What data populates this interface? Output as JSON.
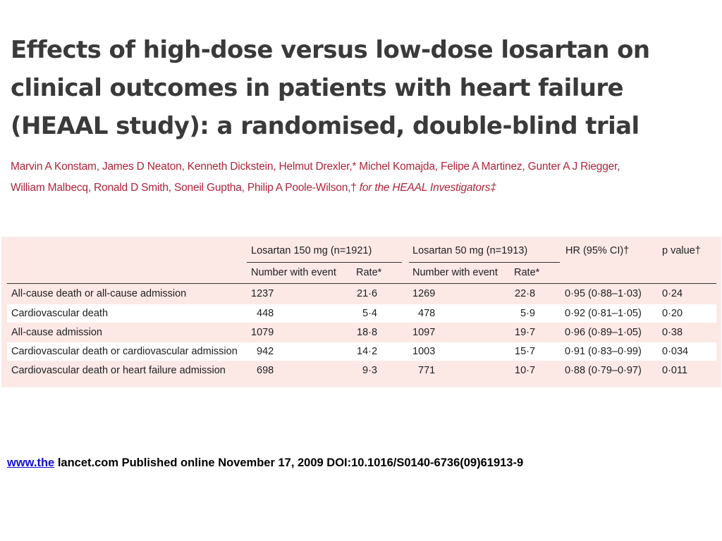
{
  "title": "Effects of high-dose versus low-dose losartan on clinical outcomes in patients with heart failure (HEAAL study): a randomised, double-blind trial",
  "authors": {
    "line1": "Marvin A Konstam, James D Neaton, Kenneth Dickstein, Helmut Drexler,* Michel Komajda, Felipe A Martinez, Gunter A J Riegger,",
    "line2_names": "William Malbecq, Ronald D Smith, Soneil Guptha, Philip A Poole-Wilson,† ",
    "line2_group": "for the HEAAL Investigators‡"
  },
  "table": {
    "group_headers": {
      "high_dose": "Losartan 150 mg (n=1921)",
      "low_dose": "Losartan 50 mg (n=1913)",
      "hr": "HR (95% CI)†",
      "p": "p value†"
    },
    "sub_headers": {
      "number_with_event": "Number with event",
      "rate": "Rate*"
    },
    "rows": [
      {
        "outcome": "All-cause death or all-cause admission",
        "n150": "1237",
        "r150": "21·6",
        "n50": "1269",
        "r50": "22·8",
        "hr": "0·95 (0·88–1·03)",
        "p": "0·24"
      },
      {
        "outcome": "Cardiovascular death",
        "n150": "448",
        "r150": "5·4",
        "n50": "478",
        "r50": "5·9",
        "hr": "0·92 (0·81–1·05)",
        "p": "0·20"
      },
      {
        "outcome": "All-cause admission",
        "n150": "1079",
        "r150": "18·8",
        "n50": "1097",
        "r50": "19·7",
        "hr": "0·96 (0·89–1·05)",
        "p": "0·38"
      },
      {
        "outcome": "Cardiovascular death or cardiovascular admission",
        "n150": "942",
        "r150": "14·2",
        "n50": "1003",
        "r50": "15·7",
        "hr": "0·91 (0·83–0·99)",
        "p": "0·034"
      },
      {
        "outcome": "Cardiovascular death or heart failure admission",
        "n150": "698",
        "r150": "9·3",
        "n50": "771",
        "r50": "10·7",
        "hr": "0·88 (0·79–0·97)",
        "p": "0·011"
      }
    ]
  },
  "footer": {
    "link_text": "www.the",
    "rest": " lancet.com Published online November 17, 2009 DOI:10.1016/S0140-6736(09)61913-9"
  }
}
